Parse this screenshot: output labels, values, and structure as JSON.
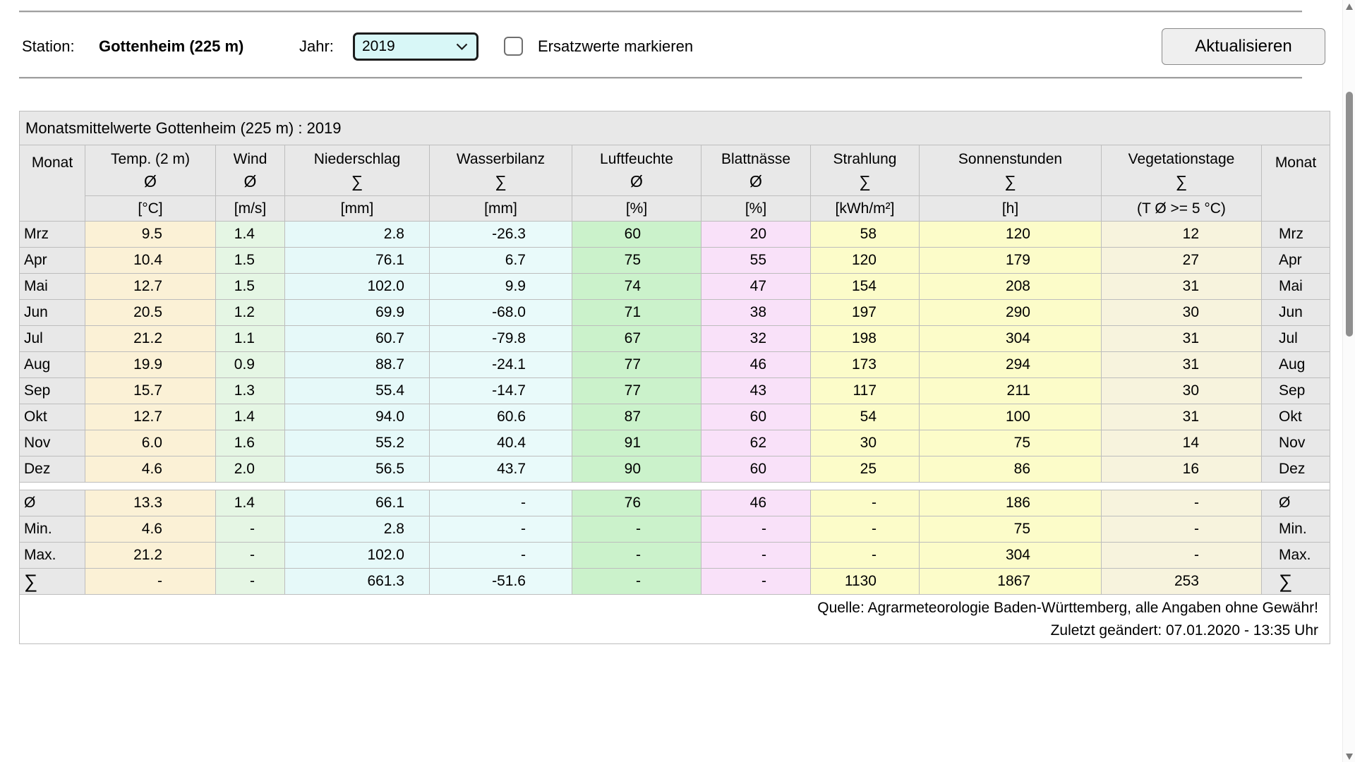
{
  "toolbar": {
    "station_label": "Station:",
    "station_value": "Gottenheim (225 m)",
    "year_label": "Jahr:",
    "year_value": "2019",
    "checkbox_label": "Ersatzwerte markieren",
    "checkbox_checked": false,
    "update_button": "Aktualisieren"
  },
  "table": {
    "title": "Monatsmittelwerte Gottenheim (225 m) : 2019",
    "columns": [
      {
        "name": "Monat",
        "symbol": "",
        "unit": ""
      },
      {
        "name": "Temp. (2 m)",
        "symbol": "Ø",
        "unit": "[°C]"
      },
      {
        "name": "Wind",
        "symbol": "Ø",
        "unit": "[m/s]"
      },
      {
        "name": "Niederschlag",
        "symbol": "∑",
        "unit": "[mm]"
      },
      {
        "name": "Wasserbilanz",
        "symbol": "∑",
        "unit": "[mm]"
      },
      {
        "name": "Luftfeuchte",
        "symbol": "Ø",
        "unit": "[%]"
      },
      {
        "name": "Blattnässe",
        "symbol": "Ø",
        "unit": "[%]"
      },
      {
        "name": "Strahlung",
        "symbol": "∑",
        "unit": "[kWh/m²]"
      },
      {
        "name": "Sonnenstunden",
        "symbol": "∑",
        "unit": "[h]"
      },
      {
        "name": "Vegetationstage",
        "symbol": "∑",
        "unit": "(T Ø >= 5 °C)"
      },
      {
        "name": "Monat",
        "symbol": "",
        "unit": ""
      }
    ],
    "rows": [
      {
        "month": "Mrz",
        "values": [
          "9.5",
          "1.4",
          "2.8",
          "-26.3",
          "60",
          "20",
          "58",
          "120",
          "12"
        ]
      },
      {
        "month": "Apr",
        "values": [
          "10.4",
          "1.5",
          "76.1",
          "6.7",
          "75",
          "55",
          "120",
          "179",
          "27"
        ]
      },
      {
        "month": "Mai",
        "values": [
          "12.7",
          "1.5",
          "102.0",
          "9.9",
          "74",
          "47",
          "154",
          "208",
          "31"
        ]
      },
      {
        "month": "Jun",
        "values": [
          "20.5",
          "1.2",
          "69.9",
          "-68.0",
          "71",
          "38",
          "197",
          "290",
          "30"
        ]
      },
      {
        "month": "Jul",
        "values": [
          "21.2",
          "1.1",
          "60.7",
          "-79.8",
          "67",
          "32",
          "198",
          "304",
          "31"
        ]
      },
      {
        "month": "Aug",
        "values": [
          "19.9",
          "0.9",
          "88.7",
          "-24.1",
          "77",
          "46",
          "173",
          "294",
          "31"
        ]
      },
      {
        "month": "Sep",
        "values": [
          "15.7",
          "1.3",
          "55.4",
          "-14.7",
          "77",
          "43",
          "117",
          "211",
          "30"
        ]
      },
      {
        "month": "Okt",
        "values": [
          "12.7",
          "1.4",
          "94.0",
          "60.6",
          "87",
          "60",
          "54",
          "100",
          "31"
        ]
      },
      {
        "month": "Nov",
        "values": [
          "6.0",
          "1.6",
          "55.2",
          "40.4",
          "91",
          "62",
          "30",
          "75",
          "14"
        ]
      },
      {
        "month": "Dez",
        "values": [
          "4.6",
          "2.0",
          "56.5",
          "43.7",
          "90",
          "60",
          "25",
          "86",
          "16"
        ]
      }
    ],
    "summary_rows": [
      {
        "label": "Ø",
        "values": [
          "13.3",
          "1.4",
          "66.1",
          "-",
          "76",
          "46",
          "-",
          "186",
          "-"
        ]
      },
      {
        "label": "Min.",
        "values": [
          "4.6",
          "-",
          "2.8",
          "-",
          "-",
          "-",
          "-",
          "75",
          "-"
        ]
      },
      {
        "label": "Max.",
        "values": [
          "21.2",
          "-",
          "102.0",
          "-",
          "-",
          "-",
          "-",
          "304",
          "-"
        ]
      },
      {
        "label": "∑",
        "values": [
          "-",
          "-",
          "661.3",
          "-51.6",
          "-",
          "-",
          "1130",
          "1867",
          "253"
        ]
      }
    ],
    "footer_line1": "Quelle: Agrarmeteorologie Baden-Württemberg, alle Angaben ohne Gewähr!",
    "footer_line2": "Zuletzt geändert: 07.01.2020 - 13:35 Uhr"
  },
  "colors": {
    "header_bg": "#e8e8e8",
    "month_bg": "#e8e8e8",
    "temp_bg": "#fbf1d6",
    "wind_bg": "#e5f6e4",
    "precip_bg": "#e6f9f9",
    "waterbalance_bg": "#e9fafa",
    "humidity_bg": "#cbf2cb",
    "leafwetness_bg": "#f9e1f9",
    "radiation_bg": "#fcfcc9",
    "sunhours_bg": "#fcfcc9",
    "vegdays_bg": "#f7f3dd",
    "select_bg": "#d8f7f7"
  }
}
